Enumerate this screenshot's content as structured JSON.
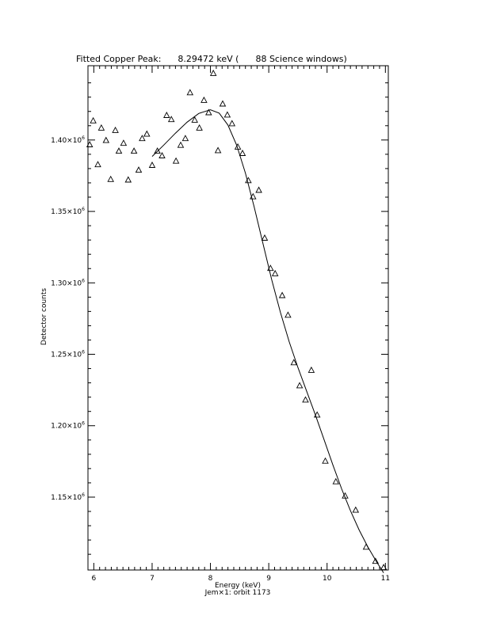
{
  "chart_data": {
    "type": "scatter",
    "title": "Fitted Copper Peak:      8.29472 keV (      88 Science windows)",
    "xlabel": "Energy (keV)",
    "subtitle": "Jem×1: orbit 1173",
    "ylabel": "Detector counts",
    "xlim": [
      5.9,
      11.05
    ],
    "ylim": [
      1099000,
      1452000
    ],
    "x_ticks": [
      6,
      7,
      8,
      9,
      10,
      11
    ],
    "x_tick_labels": [
      "6",
      "7",
      "8",
      "9",
      "10",
      "11"
    ],
    "y_ticks": [
      {
        "value": 1150000,
        "mantissa": "1.15×10",
        "exp": "6"
      },
      {
        "value": 1200000,
        "mantissa": "1.20×10",
        "exp": "6"
      },
      {
        "value": 1250000,
        "mantissa": "1.25×10",
        "exp": "6"
      },
      {
        "value": 1300000,
        "mantissa": "1.30×10",
        "exp": "6"
      },
      {
        "value": 1350000,
        "mantissa": "1.35×10",
        "exp": "6"
      },
      {
        "value": 1400000,
        "mantissa": "1.40×10",
        "exp": "6"
      }
    ],
    "grid": false,
    "series": [
      {
        "marker": "triangle",
        "points": [
          [
            5.93,
            1396600
          ],
          [
            5.99,
            1413300
          ],
          [
            6.07,
            1382600
          ],
          [
            6.13,
            1408300
          ],
          [
            6.21,
            1399600
          ],
          [
            6.29,
            1372300
          ],
          [
            6.37,
            1406600
          ],
          [
            6.43,
            1392100
          ],
          [
            6.51,
            1397600
          ],
          [
            6.59,
            1371900
          ],
          [
            6.69,
            1392100
          ],
          [
            6.77,
            1378800
          ],
          [
            6.83,
            1400900
          ],
          [
            6.91,
            1404000
          ],
          [
            7.0,
            1382200
          ],
          [
            7.09,
            1392100
          ],
          [
            7.17,
            1388800
          ],
          [
            7.25,
            1417100
          ],
          [
            7.33,
            1414200
          ],
          [
            7.41,
            1385100
          ],
          [
            7.49,
            1396200
          ],
          [
            7.57,
            1400900
          ],
          [
            7.65,
            1433000
          ],
          [
            7.73,
            1413800
          ],
          [
            7.81,
            1408300
          ],
          [
            7.89,
            1427700
          ],
          [
            7.97,
            1419000
          ],
          [
            8.05,
            1446500
          ],
          [
            8.13,
            1392500
          ],
          [
            8.21,
            1425100
          ],
          [
            8.29,
            1417400
          ],
          [
            8.37,
            1411300
          ],
          [
            8.47,
            1395000
          ],
          [
            8.55,
            1390500
          ],
          [
            8.65,
            1371500
          ],
          [
            8.73,
            1360200
          ],
          [
            8.83,
            1364700
          ],
          [
            8.93,
            1331200
          ],
          [
            9.03,
            1310000
          ],
          [
            9.11,
            1306300
          ],
          [
            9.23,
            1291000
          ],
          [
            9.33,
            1277300
          ],
          [
            9.43,
            1244000
          ],
          [
            9.53,
            1227900
          ],
          [
            9.63,
            1217900
          ],
          [
            9.73,
            1238700
          ],
          [
            9.83,
            1207400
          ],
          [
            9.97,
            1175100
          ],
          [
            10.15,
            1160700
          ],
          [
            10.31,
            1150700
          ],
          [
            10.49,
            1140800
          ],
          [
            10.67,
            1114900
          ],
          [
            10.83,
            1105000
          ],
          [
            10.97,
            1100600
          ]
        ]
      },
      {
        "marker": "line",
        "points": [
          [
            7.0,
            1388500
          ],
          [
            7.2,
            1396500
          ],
          [
            7.4,
            1404800
          ],
          [
            7.6,
            1412500
          ],
          [
            7.8,
            1418600
          ],
          [
            8.0,
            1421200
          ],
          [
            8.15,
            1418800
          ],
          [
            8.3,
            1410500
          ],
          [
            8.45,
            1396300
          ],
          [
            8.6,
            1376800
          ],
          [
            8.75,
            1353200
          ],
          [
            8.9,
            1327600
          ],
          [
            9.05,
            1302300
          ],
          [
            9.2,
            1279200
          ],
          [
            9.35,
            1258800
          ],
          [
            9.5,
            1240800
          ],
          [
            9.65,
            1224100
          ],
          [
            9.8,
            1207500
          ],
          [
            9.95,
            1190100
          ],
          [
            10.1,
            1172500
          ],
          [
            10.25,
            1155800
          ],
          [
            10.4,
            1140500
          ],
          [
            10.55,
            1127000
          ],
          [
            10.7,
            1115100
          ],
          [
            10.85,
            1104600
          ],
          [
            10.97,
            1097000
          ]
        ]
      }
    ]
  }
}
